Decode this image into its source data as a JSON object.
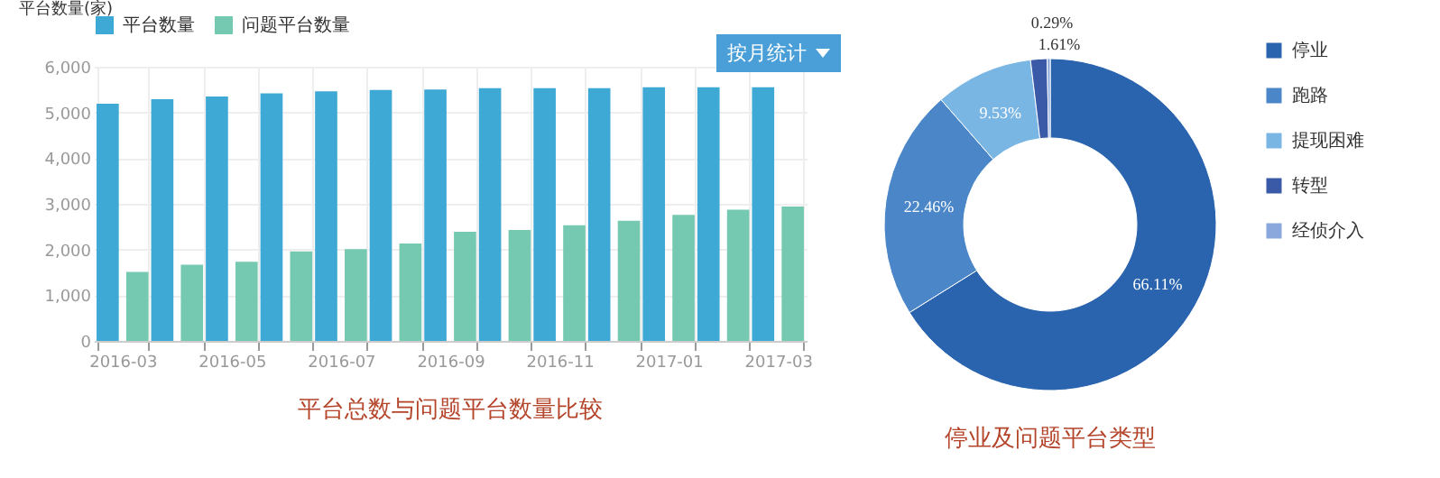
{
  "chart_data": [
    {
      "type": "bar",
      "title": "平台总数与问题平台数量比较",
      "ylabel": "平台数量(家)",
      "categories": [
        "2016-03",
        null,
        "2016-05",
        null,
        "2016-07",
        null,
        "2016-09",
        null,
        "2016-11",
        null,
        "2017-01",
        null,
        "2017-03"
      ],
      "series": [
        {
          "name": "平台数量",
          "color": "#3fa9d6",
          "values": [
            5190,
            5290,
            5350,
            5420,
            5460,
            5490,
            5500,
            5530,
            5530,
            5530,
            5550,
            5550,
            5550
          ]
        },
        {
          "name": "问题平台数量",
          "color": "#76c9b1",
          "values": [
            1510,
            1670,
            1730,
            1960,
            2010,
            2130,
            2390,
            2430,
            2530,
            2630,
            2760,
            2870,
            2940
          ]
        }
      ],
      "ylim": [
        0,
        6000
      ],
      "yticks": [
        {
          "value": 0,
          "label": "0"
        },
        {
          "value": 1000,
          "label": "1,000"
        },
        {
          "value": 2000,
          "label": "2,000"
        },
        {
          "value": 3000,
          "label": "3,000"
        },
        {
          "value": 4000,
          "label": "4,000"
        },
        {
          "value": 5000,
          "label": "5,000"
        },
        {
          "value": 6000,
          "label": "6,000"
        }
      ],
      "grid": true,
      "legend": "top",
      "annotations": [
        "按月统计"
      ]
    },
    {
      "type": "donut",
      "title": "停业及问题平台类型",
      "categories": [
        "停业",
        "跑路",
        "提现困难",
        "转型",
        "经侦介入"
      ],
      "values": [
        66.11,
        22.46,
        9.53,
        1.61,
        0.29
      ],
      "colors": [
        "#2b64ae",
        "#4a86c8",
        "#7ab6e4",
        "#3a5aa8",
        "#8aa8dc"
      ],
      "value_labels": [
        "66.11%",
        "22.46%",
        "9.53%",
        "1.61%",
        "0.29%"
      ],
      "legend": "right"
    }
  ]
}
